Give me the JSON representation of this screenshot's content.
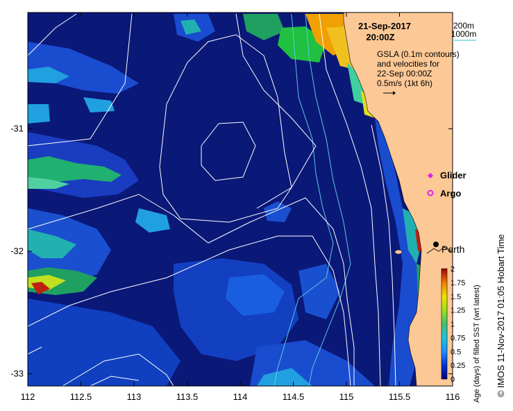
{
  "map": {
    "date": "21-Sep-2017",
    "time": "20:00Z",
    "contour_labels": [
      "200m",
      "1000m"
    ],
    "gsla_lines": [
      "GSLA (0.1m contours)",
      "and velocities for",
      "22-Sep 00:00Z",
      "0.5m/s (1kt 6h)"
    ],
    "legend": [
      {
        "label": "Glider",
        "color": "#e020e0",
        "symbol": "diamond"
      },
      {
        "label": "Argo",
        "color": "#e020e0",
        "symbol": "circle"
      }
    ],
    "place": {
      "label": "Perth",
      "lon": 115.86,
      "lat": -31.95
    },
    "x_ticks": [
      "112",
      "112.5",
      "113",
      "113.5",
      "114",
      "114.5",
      "115",
      "115.5",
      "116"
    ],
    "y_ticks": [
      "-31",
      "-32",
      "-33"
    ],
    "xlim": [
      112,
      116
    ],
    "ylim": [
      -33.1,
      -30.05
    ],
    "colorbar": {
      "ticks": [
        "2",
        "1.75",
        "1.5",
        "1.25",
        "1",
        "0.75",
        "0.5",
        "0.25",
        "0"
      ],
      "label": "Age (days) of filled SST (wrt latest)"
    },
    "credit": "© IMOS 11-Nov-2017 01:05 Hobart Time",
    "colors": {
      "ocean": "#0a1878",
      "land": "#fcc896",
      "contour": "#ffffff",
      "bathy": "#5ec8e0"
    }
  }
}
